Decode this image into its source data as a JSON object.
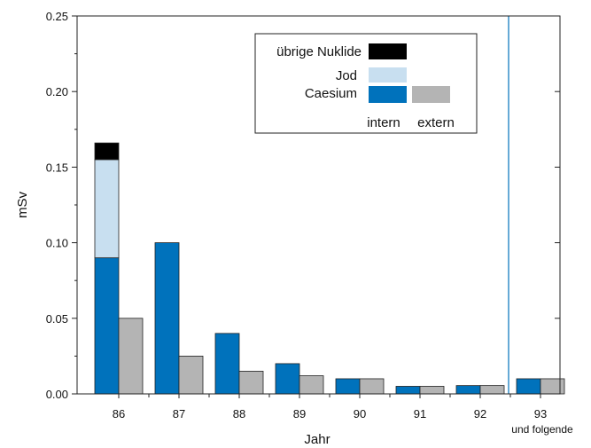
{
  "chart_data": {
    "type": "bar",
    "ylabel": "mSv",
    "xlabel": "Jahr",
    "ylim": [
      0,
      0.25
    ],
    "yticks": [
      "0.00",
      "0.05",
      "0.10",
      "0.15",
      "0.20",
      "0.25"
    ],
    "categories": [
      "86",
      "87",
      "88",
      "89",
      "90",
      "91",
      "92",
      "93"
    ],
    "category_sublabel": "und folgende",
    "intern": {
      "caesium": [
        0.09,
        0.1,
        0.04,
        0.02,
        0.01,
        0.005,
        0.0055,
        0.01
      ],
      "jod": [
        0.065,
        0,
        0,
        0,
        0,
        0,
        0,
        0
      ],
      "uebrige": [
        0.011,
        0,
        0,
        0,
        0,
        0,
        0,
        0
      ]
    },
    "extern": {
      "caesium": [
        0.05,
        0.025,
        0.015,
        0.012,
        0.01,
        0.005,
        0.0055,
        0.01
      ]
    },
    "legend": {
      "placement": "top-right",
      "uebrige": "übrige Nuklide",
      "jod": "Jod",
      "caesium": "Caesium",
      "intern": "intern",
      "extern": "extern"
    },
    "colors": {
      "caesium_intern": "#0072bc",
      "jod": "#c8dff0",
      "uebrige": "#000000",
      "extern": "#b4b4b4",
      "separator": "#0072bc"
    },
    "grid": false
  }
}
